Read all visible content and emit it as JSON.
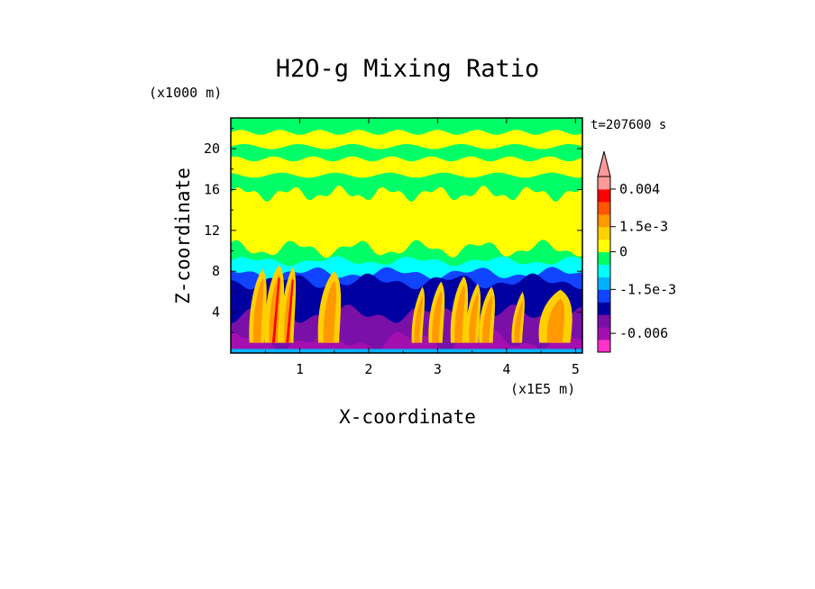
{
  "chart_data": {
    "type": "heatmap",
    "title": "H2O-g Mixing Ratio",
    "xlabel": "X-coordinate",
    "ylabel": "Z-coordinate",
    "x_unit": "(x1E5 m)",
    "y_unit": "(x1000 m)",
    "time_label": "t=207600 s",
    "xlim": [
      0.0,
      5.1
    ],
    "ylim": [
      0.0,
      23.0
    ],
    "x_ticks": [
      1,
      2,
      3,
      4,
      5
    ],
    "y_ticks": [
      4,
      8,
      12,
      16,
      20
    ],
    "colorbar": {
      "colors": [
        "#ff33cc",
        "#a40fb0",
        "#7a10a8",
        "#0000a0",
        "#1144ff",
        "#00b2ff",
        "#00ffff",
        "#00ff66",
        "#ffff00",
        "#ffd000",
        "#ff9900",
        "#ff5500",
        "#ff0000",
        "#ff9999"
      ],
      "labels": [
        "0.004",
        "1.5e-3",
        "0",
        "-1.5e-3",
        "-0.006"
      ],
      "label_levels": [
        13,
        10,
        8,
        5,
        1.5
      ],
      "extend": "max"
    },
    "field_layers": [
      {
        "level": 7,
        "color": "#00ff66",
        "z_top": 22.0
      },
      {
        "level": 6,
        "color": "#00ffff",
        "z_top": 9.0
      },
      {
        "level": 5,
        "color": "#1144ff",
        "z_top": 7.8
      },
      {
        "level": 4,
        "color": "#0000a0",
        "z_top": 7.0
      },
      {
        "level": 3,
        "color": "#7a10a8",
        "z_top": 3.8
      },
      {
        "level": 2,
        "color": "#a40fb0",
        "z_top": 1.2
      }
    ],
    "moist_layer": {
      "color": "#ffff00",
      "z_bottom": 10.2,
      "z_top": 15.6
    },
    "upper_bands": [
      {
        "color": "#ffff00",
        "z_center": 20.9,
        "thickness": 1.4
      },
      {
        "color": "#ffff00",
        "z_center": 18.2,
        "thickness": 1.6
      }
    ],
    "plumes": [
      {
        "x": 0.38,
        "z_top": 8.2,
        "width": 0.22
      },
      {
        "x": 0.62,
        "z_top": 8.6,
        "width": 0.25
      },
      {
        "x": 0.82,
        "z_top": 8.4,
        "width": 0.18
      },
      {
        "x": 1.42,
        "z_top": 8.0,
        "width": 0.3
      },
      {
        "x": 2.7,
        "z_top": 6.5,
        "width": 0.15
      },
      {
        "x": 2.97,
        "z_top": 7.0,
        "width": 0.2
      },
      {
        "x": 3.3,
        "z_top": 7.5,
        "width": 0.22
      },
      {
        "x": 3.5,
        "z_top": 6.8,
        "width": 0.18
      },
      {
        "x": 3.7,
        "z_top": 6.5,
        "width": 0.2
      },
      {
        "x": 4.15,
        "z_top": 6.0,
        "width": 0.15
      },
      {
        "x": 4.7,
        "z_top": 6.2,
        "width": 0.45
      }
    ]
  }
}
